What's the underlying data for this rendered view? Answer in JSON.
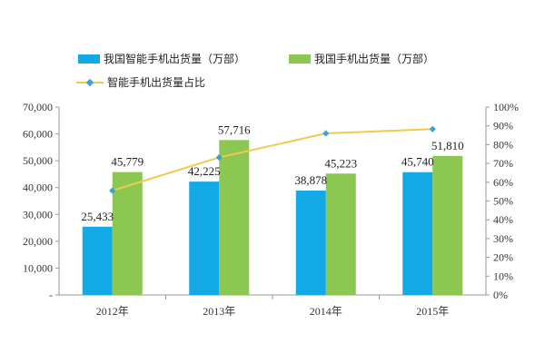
{
  "chart_data": {
    "type": "bar+line",
    "categories": [
      "2012年",
      "2013年",
      "2014年",
      "2015年"
    ],
    "series": [
      {
        "name": "我国智能手机出货量（万部）",
        "type": "bar",
        "axis": "left",
        "color": "#12A9E6",
        "values": [
          25433,
          42225,
          38878,
          45740
        ],
        "labels": [
          "25,433",
          "42,225",
          "38,878",
          "45,740"
        ]
      },
      {
        "name": "我国手机出货量（万部）",
        "type": "bar",
        "axis": "left",
        "color": "#8CC751",
        "values": [
          45779,
          57716,
          45223,
          51810
        ],
        "labels": [
          "45,779",
          "57,716",
          "45,223",
          "51,810"
        ]
      },
      {
        "name": "智能手机出货量占比",
        "type": "line",
        "axis": "right",
        "color": "#F2C94C",
        "marker_color": "#36A3D9",
        "values": [
          0.555,
          0.732,
          0.86,
          0.883
        ]
      }
    ],
    "y_left": {
      "min": 0,
      "max": 70000,
      "step": 10000,
      "tick_labels": [
        "-",
        "10,000",
        "20,000",
        "30,000",
        "40,000",
        "50,000",
        "60,000",
        "70,000"
      ]
    },
    "y_right": {
      "min": 0,
      "max": 1,
      "step": 0.1,
      "tick_labels": [
        "0%",
        "10%",
        "20%",
        "30%",
        "40%",
        "50%",
        "60%",
        "70%",
        "80%",
        "90%",
        "100%"
      ]
    },
    "grid": false,
    "legend_position": "top-left"
  }
}
